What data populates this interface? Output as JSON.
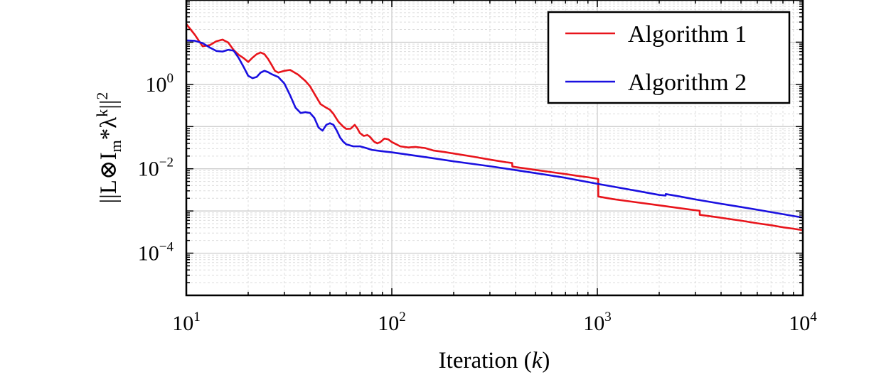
{
  "chart_data": {
    "type": "line",
    "xlabel": "Iteration (",
    "xlabel_var": "k",
    "xlabel_end": ")",
    "ylabel": "||L⊗I",
    "ylabel_sub": "m",
    "ylabel_mid": "*λ",
    "ylabel_sup": "k",
    "ylabel_end": "||",
    "ylabel_sup2": "2",
    "x_scale": "log",
    "y_scale": "log",
    "xlim": [
      10,
      10000
    ],
    "ylim": [
      1e-05,
      100
    ],
    "grid": true,
    "legend_position": "top-right",
    "x_ticks": [
      {
        "value": 10,
        "base": "10",
        "exp": "1"
      },
      {
        "value": 100,
        "base": "10",
        "exp": "2"
      },
      {
        "value": 1000,
        "base": "10",
        "exp": "3"
      },
      {
        "value": 10000,
        "base": "10",
        "exp": "4"
      }
    ],
    "y_ticks": [
      {
        "value": 1,
        "base": "10",
        "exp": "0"
      },
      {
        "value": 0.01,
        "base": "10",
        "exp": "−2"
      },
      {
        "value": 0.0001,
        "base": "10",
        "exp": "−4"
      }
    ],
    "series": [
      {
        "name": "Algorithm 1",
        "color": "#e8141b",
        "points": [
          [
            10,
            27
          ],
          [
            11,
            15
          ],
          [
            12,
            8
          ],
          [
            13,
            8.5
          ],
          [
            14,
            10.5
          ],
          [
            15,
            11.5
          ],
          [
            16,
            9.8
          ],
          [
            17,
            6.5
          ],
          [
            18,
            5.0
          ],
          [
            19,
            4.2
          ],
          [
            20,
            3.4
          ],
          [
            21,
            4.3
          ],
          [
            22,
            5.2
          ],
          [
            23,
            5.7
          ],
          [
            24,
            5.2
          ],
          [
            25,
            4.0
          ],
          [
            26,
            2.9
          ],
          [
            27,
            2.1
          ],
          [
            28,
            1.9
          ],
          [
            30,
            2.1
          ],
          [
            32,
            2.2
          ],
          [
            35,
            1.7
          ],
          [
            38,
            1.2
          ],
          [
            40,
            0.9
          ],
          [
            42,
            0.6
          ],
          [
            45,
            0.34
          ],
          [
            48,
            0.28
          ],
          [
            50,
            0.25
          ],
          [
            52,
            0.2
          ],
          [
            55,
            0.13
          ],
          [
            58,
            0.1
          ],
          [
            60,
            0.088
          ],
          [
            63,
            0.089
          ],
          [
            66,
            0.11
          ],
          [
            68,
            0.09
          ],
          [
            70,
            0.07
          ],
          [
            73,
            0.06
          ],
          [
            76,
            0.063
          ],
          [
            78,
            0.058
          ],
          [
            82,
            0.044
          ],
          [
            85,
            0.04
          ],
          [
            88,
            0.043
          ],
          [
            92,
            0.052
          ],
          [
            96,
            0.05
          ],
          [
            100,
            0.043
          ],
          [
            110,
            0.034
          ],
          [
            120,
            0.032
          ],
          [
            130,
            0.033
          ],
          [
            145,
            0.031
          ],
          [
            160,
            0.027
          ],
          [
            180,
            0.025
          ],
          [
            200,
            0.023
          ],
          [
            250,
            0.0193
          ],
          [
            300,
            0.0165
          ],
          [
            360,
            0.0143
          ],
          [
            385,
            0.0137
          ],
          [
            386,
            0.0113
          ],
          [
            400,
            0.011
          ],
          [
            500,
            0.0094
          ],
          [
            600,
            0.0083
          ],
          [
            700,
            0.0075
          ],
          [
            800,
            0.0068
          ],
          [
            900,
            0.0063
          ],
          [
            1000,
            0.0058
          ],
          [
            1010,
            0.0057
          ],
          [
            1011,
            0.0022
          ],
          [
            1200,
            0.0019
          ],
          [
            1500,
            0.00164
          ],
          [
            2000,
            0.00136
          ],
          [
            2500,
            0.00117
          ],
          [
            3000,
            0.00104
          ],
          [
            3150,
            0.00101
          ],
          [
            3151,
            0.00081
          ],
          [
            4000,
            0.00069
          ],
          [
            5000,
            0.00059
          ],
          [
            6000,
            0.00051
          ],
          [
            7000,
            0.00046
          ],
          [
            8000,
            0.00041
          ],
          [
            9000,
            0.00038
          ],
          [
            10000,
            0.00035
          ]
        ]
      },
      {
        "name": "Algorithm 2",
        "color": "#1a10e0",
        "points": [
          [
            10,
            11
          ],
          [
            11,
            10.8
          ],
          [
            12,
            9.5
          ],
          [
            13,
            7.5
          ],
          [
            14,
            6.2
          ],
          [
            15,
            6.0
          ],
          [
            16,
            6.6
          ],
          [
            17,
            6.3
          ],
          [
            18,
            4.2
          ],
          [
            19,
            2.6
          ],
          [
            20,
            1.6
          ],
          [
            21,
            1.4
          ],
          [
            22,
            1.5
          ],
          [
            23,
            1.9
          ],
          [
            24,
            2.1
          ],
          [
            25,
            1.95
          ],
          [
            26,
            1.75
          ],
          [
            28,
            1.5
          ],
          [
            30,
            1.05
          ],
          [
            32,
            0.55
          ],
          [
            34,
            0.28
          ],
          [
            36,
            0.21
          ],
          [
            38,
            0.22
          ],
          [
            40,
            0.21
          ],
          [
            42,
            0.16
          ],
          [
            44,
            0.095
          ],
          [
            46,
            0.08
          ],
          [
            48,
            0.11
          ],
          [
            50,
            0.12
          ],
          [
            52,
            0.11
          ],
          [
            54,
            0.08
          ],
          [
            56,
            0.055
          ],
          [
            58,
            0.044
          ],
          [
            60,
            0.038
          ],
          [
            65,
            0.034
          ],
          [
            70,
            0.034
          ],
          [
            75,
            0.031
          ],
          [
            80,
            0.028
          ],
          [
            90,
            0.026
          ],
          [
            100,
            0.0245
          ],
          [
            150,
            0.0185
          ],
          [
            200,
            0.015
          ],
          [
            300,
            0.0115
          ],
          [
            400,
            0.0093
          ],
          [
            500,
            0.0079
          ],
          [
            700,
            0.0061
          ],
          [
            1000,
            0.0044
          ],
          [
            1500,
            0.0031
          ],
          [
            2000,
            0.0024
          ],
          [
            2150,
            0.00232
          ],
          [
            2151,
            0.00252
          ],
          [
            2500,
            0.00222
          ],
          [
            3000,
            0.00188
          ],
          [
            4000,
            0.00148
          ],
          [
            5000,
            0.00124
          ],
          [
            6000,
            0.00107
          ],
          [
            7000,
            0.00094
          ],
          [
            8000,
            0.00084
          ],
          [
            9000,
            0.00076
          ],
          [
            10000,
            0.0007
          ]
        ]
      }
    ]
  }
}
